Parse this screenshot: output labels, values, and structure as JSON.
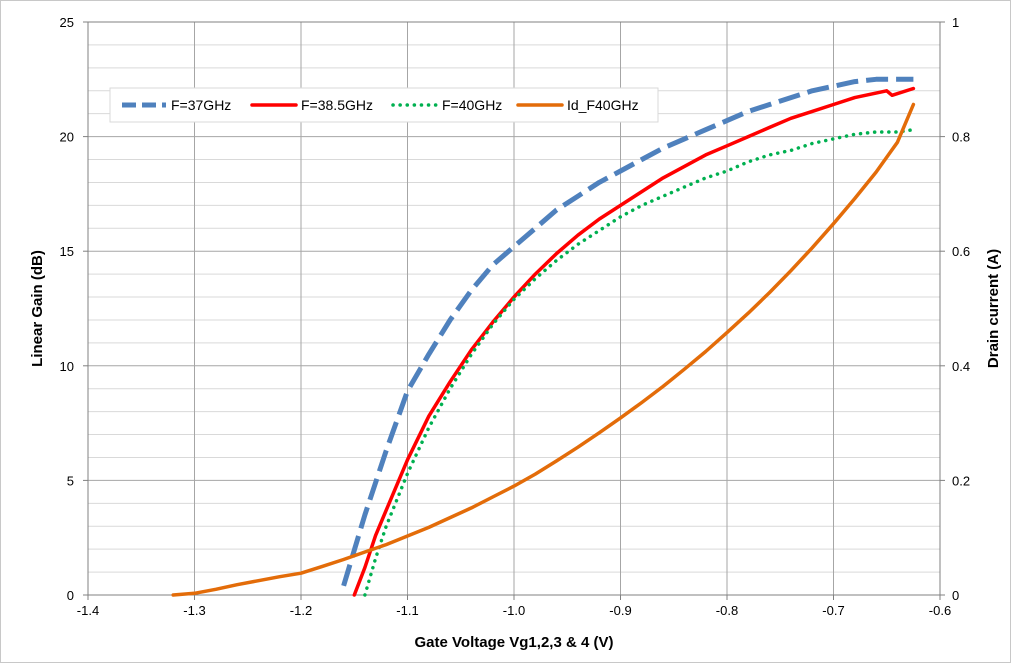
{
  "chart_data": {
    "type": "line",
    "xlabel": "Gate Voltage Vg1,2,3 & 4 (V)",
    "ylabel": "Linear Gain (dB)",
    "y2label": "Drain current (A)",
    "xlim": [
      -1.4,
      -0.6
    ],
    "ylim": [
      0,
      25
    ],
    "y2lim": [
      0,
      1
    ],
    "x_ticks": [
      "-1.4",
      "-1.3",
      "-1.2",
      "-1.1",
      "-1.0",
      "-0.9",
      "-0.8",
      "-0.7",
      "-0.6"
    ],
    "y_ticks": [
      "0",
      "5",
      "10",
      "15",
      "20",
      "25"
    ],
    "y2_ticks": [
      "0",
      "0.2",
      "0.4",
      "0.6",
      "0.8",
      "1"
    ],
    "grid": true,
    "legend_position": "top-left",
    "series": [
      {
        "name": "F=37GHz",
        "axis": "left",
        "color": "#4f81bd",
        "style": "dashed",
        "x": [
          -1.16,
          -1.14,
          -1.12,
          -1.1,
          -1.08,
          -1.06,
          -1.04,
          -1.02,
          -1.0,
          -0.98,
          -0.96,
          -0.94,
          -0.92,
          -0.9,
          -0.88,
          -0.86,
          -0.84,
          -0.82,
          -0.8,
          -0.78,
          -0.76,
          -0.74,
          -0.72,
          -0.7,
          -0.68,
          -0.66,
          -0.64,
          -0.625
        ],
        "y": [
          0.4,
          3.5,
          6.3,
          8.9,
          10.5,
          12.0,
          13.3,
          14.4,
          15.2,
          16.0,
          16.8,
          17.4,
          18.0,
          18.5,
          19.0,
          19.5,
          19.9,
          20.3,
          20.7,
          21.1,
          21.4,
          21.7,
          22.0,
          22.2,
          22.4,
          22.5,
          22.5,
          22.5
        ]
      },
      {
        "name": "F=38.5GHz",
        "axis": "left",
        "color": "#ff0000",
        "style": "solid",
        "x": [
          -1.15,
          -1.14,
          -1.13,
          -1.12,
          -1.1,
          -1.08,
          -1.06,
          -1.04,
          -1.02,
          -1.0,
          -0.98,
          -0.96,
          -0.94,
          -0.92,
          -0.9,
          -0.88,
          -0.86,
          -0.84,
          -0.82,
          -0.8,
          -0.78,
          -0.76,
          -0.74,
          -0.72,
          -0.7,
          -0.68,
          -0.66,
          -0.65,
          -0.645,
          -0.625
        ],
        "y": [
          -0.3,
          1.2,
          2.6,
          3.7,
          5.9,
          7.8,
          9.3,
          10.7,
          11.9,
          13.0,
          14.0,
          14.9,
          15.7,
          16.4,
          17.0,
          17.6,
          18.2,
          18.7,
          19.2,
          19.6,
          20.0,
          20.4,
          20.8,
          21.1,
          21.4,
          21.7,
          21.9,
          22.0,
          21.8,
          22.1
        ]
      },
      {
        "name": "F=40GHz",
        "axis": "left",
        "color": "#00b050",
        "style": "dotted",
        "x": [
          -1.14,
          -1.13,
          -1.12,
          -1.1,
          -1.08,
          -1.06,
          -1.04,
          -1.02,
          -1.0,
          -0.98,
          -0.96,
          -0.94,
          -0.92,
          -0.9,
          -0.88,
          -0.86,
          -0.84,
          -0.82,
          -0.8,
          -0.78,
          -0.76,
          -0.74,
          -0.72,
          -0.7,
          -0.68,
          -0.66,
          -0.64,
          -0.625
        ],
        "y": [
          0.0,
          1.6,
          3.0,
          5.3,
          7.3,
          9.0,
          10.5,
          11.8,
          12.9,
          13.8,
          14.6,
          15.3,
          15.9,
          16.5,
          17.0,
          17.4,
          17.8,
          18.2,
          18.5,
          18.9,
          19.2,
          19.4,
          19.7,
          19.9,
          20.1,
          20.2,
          20.2,
          20.3
        ]
      },
      {
        "name": "Id_F40GHz",
        "axis": "right",
        "color": "#e36c09",
        "style": "solid",
        "x": [
          -1.32,
          -1.3,
          -1.28,
          -1.26,
          -1.24,
          -1.22,
          -1.2,
          -1.18,
          -1.16,
          -1.14,
          -1.12,
          -1.1,
          -1.08,
          -1.06,
          -1.04,
          -1.02,
          -1.0,
          -0.98,
          -0.96,
          -0.94,
          -0.92,
          -0.9,
          -0.88,
          -0.86,
          -0.84,
          -0.82,
          -0.8,
          -0.78,
          -0.76,
          -0.74,
          -0.72,
          -0.7,
          -0.68,
          -0.66,
          -0.64,
          -0.625
        ],
        "y": [
          0.0,
          0.003,
          0.01,
          0.018,
          0.025,
          0.032,
          0.038,
          0.05,
          0.062,
          0.075,
          0.088,
          0.103,
          0.118,
          0.135,
          0.152,
          0.171,
          0.19,
          0.211,
          0.234,
          0.258,
          0.283,
          0.309,
          0.336,
          0.364,
          0.394,
          0.425,
          0.458,
          0.492,
          0.528,
          0.566,
          0.606,
          0.648,
          0.692,
          0.738,
          0.79,
          0.856
        ]
      }
    ]
  }
}
